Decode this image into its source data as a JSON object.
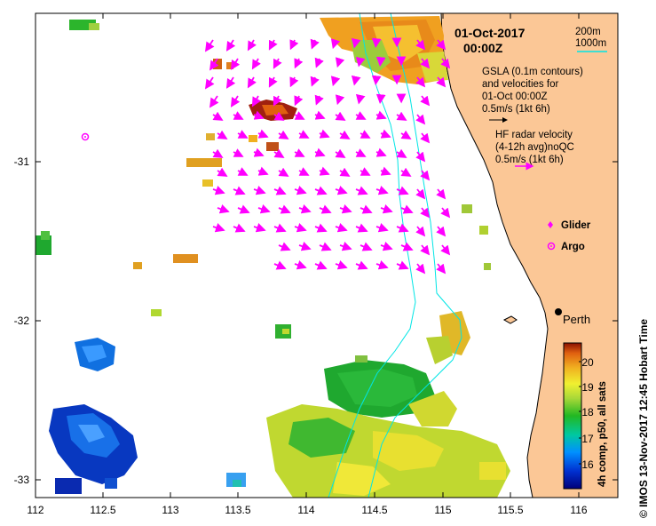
{
  "map": {
    "x_ticks": [
      "112",
      "112.5",
      "113",
      "113.5",
      "114",
      "114.5",
      "115",
      "115.5",
      "116"
    ],
    "y_ticks": [
      "-31",
      "-32",
      "-33"
    ],
    "date_line1": "01-Oct-2017",
    "date_line2": "00:00Z",
    "contour_legend": {
      "c200": "200m",
      "c1000": "1000m"
    },
    "gsla_text": [
      "GSLA (0.1m contours)",
      "and velocities for",
      "01-Oct 00:00Z",
      "0.5m/s (1kt 6h)"
    ],
    "hf_text": [
      "HF radar velocity",
      "(4-12h avg)noQC",
      "0.5m/s (1kt 6h)"
    ],
    "legend": {
      "glider": "Glider",
      "argo": "Argo"
    },
    "city": "Perth",
    "colorbar": {
      "ticks": [
        "20",
        "19",
        "18",
        "17",
        "16"
      ],
      "label": "4h comp, p50, all sats"
    },
    "credit": "©  IMOS 13-Nov-2017 12:45 Hobart Time",
    "colors": {
      "land": "#fbc796",
      "arrow": "#ff00ff",
      "contour_cyan": "#00e5e5"
    }
  }
}
